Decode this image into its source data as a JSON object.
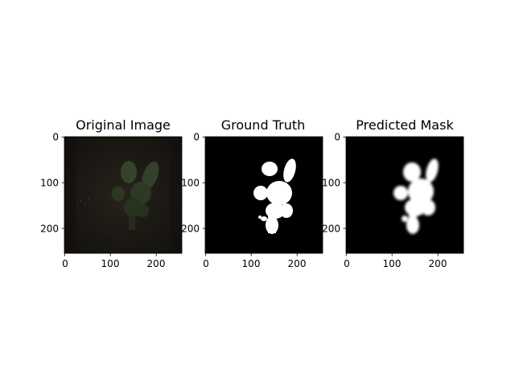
{
  "figure": {
    "panels": [
      {
        "title": "Original Image",
        "xticks": [
          "0",
          "100",
          "200"
        ],
        "yticks": [
          "0",
          "100",
          "200"
        ],
        "content": "dark soil image with a green plant"
      },
      {
        "title": "Ground Truth",
        "xticks": [
          "0",
          "100",
          "200"
        ],
        "yticks": [
          "0",
          "100",
          "200"
        ],
        "content": "binary mask, white plant on black"
      },
      {
        "title": "Predicted Mask",
        "xticks": [
          "0",
          "100",
          "200"
        ],
        "yticks": [
          "0",
          "100",
          "200"
        ],
        "content": "soft mask, white plant on black"
      }
    ],
    "colors": {
      "background": "#ffffff",
      "mask_background": "#000000",
      "mask_foreground": "#ffffff",
      "soil": "#1e1b17",
      "leaf": "#2e3a23"
    }
  }
}
